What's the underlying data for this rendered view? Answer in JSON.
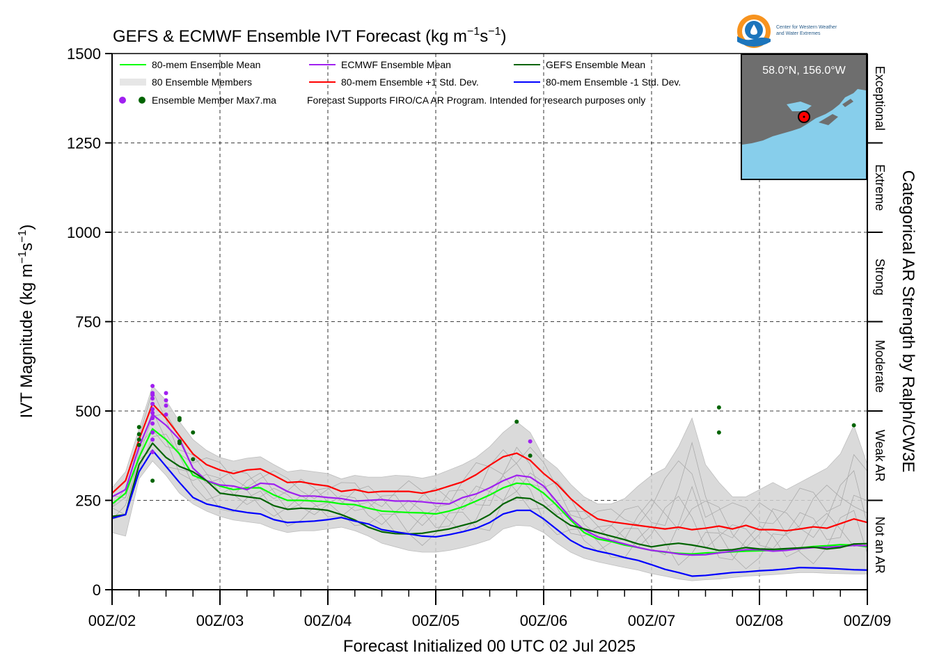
{
  "header": {
    "title_main": "GEFS & ECMWF Ensemble IVT Forecast (kg m",
    "title_sup1": "−1",
    "title_mid": "s",
    "title_sup2": "−1",
    "title_end": ")",
    "logo_line1": "Center for Western Weather",
    "logo_line2": "and Water Extremes"
  },
  "legend": {
    "items": [
      {
        "label": "80-mem Ensemble Mean",
        "color": "#00ff00"
      },
      {
        "label": "ECMWF Ensemble Mean",
        "color": "#a020f0"
      },
      {
        "label": "GEFS Ensemble Mean",
        "color": "#006400"
      },
      {
        "label": "80 Ensemble Members",
        "color": "#bebebe"
      },
      {
        "label": "80-mem Ensemble +1 Std. Dev.",
        "color": "#ff0000"
      },
      {
        "label": "80-mem Ensemble -1 Std. Dev.",
        "color": "#0000ff"
      }
    ],
    "max_label": "Ensemble Member Max7.ma",
    "disclaimer": "Forecast Supports FIRO/CA AR Program. Intended for research purposes only"
  },
  "inset": {
    "location": "58.0°N, 156.0°W",
    "land_color": "#6e6e6e",
    "water_color": "#87ceeb"
  },
  "categories": {
    "title": "Categorical AR Strength by Ralph/CW3E",
    "bands": [
      {
        "label": "Not an AR",
        "from": 0,
        "to": 250
      },
      {
        "label": "Weak AR",
        "from": 250,
        "to": 500
      },
      {
        "label": "Moderate",
        "from": 500,
        "to": 750
      },
      {
        "label": "Strong",
        "from": 750,
        "to": 1000
      },
      {
        "label": "Extreme",
        "from": 1000,
        "to": 1250
      },
      {
        "label": "Exceptional",
        "from": 1250,
        "to": 1500
      }
    ]
  },
  "chart_data": {
    "type": "line",
    "title": "GEFS & ECMWF Ensemble IVT Forecast (kg m−1s−1)",
    "xlabel": "Forecast Initialized 00 UTC 02 Jul 2025",
    "ylabel": "IVT Magnitude (kg m−1s−1)",
    "ylim": [
      0,
      1500
    ],
    "xlim": [
      0,
      168
    ],
    "x_units": "forecast hours",
    "yticks": [
      0,
      250,
      500,
      750,
      1000,
      1250,
      1500
    ],
    "xticks": [
      {
        "x": 0,
        "label": "00Z/02"
      },
      {
        "x": 24,
        "label": "00Z/03"
      },
      {
        "x": 48,
        "label": "00Z/04"
      },
      {
        "x": 72,
        "label": "00Z/05"
      },
      {
        "x": 96,
        "label": "00Z/06"
      },
      {
        "x": 120,
        "label": "00Z/07"
      },
      {
        "x": 144,
        "label": "00Z/08"
      },
      {
        "x": 168,
        "label": "00Z/09"
      }
    ],
    "grid": true,
    "x": [
      0,
      3,
      6,
      9,
      12,
      15,
      18,
      21,
      24,
      27,
      30,
      33,
      36,
      39,
      42,
      45,
      48,
      51,
      54,
      57,
      60,
      63,
      66,
      69,
      72,
      75,
      78,
      81,
      84,
      87,
      90,
      93,
      96,
      99,
      102,
      105,
      108,
      111,
      114,
      117,
      120,
      123,
      126,
      129,
      132,
      135,
      138,
      141,
      144,
      147,
      150,
      153,
      156,
      159,
      162,
      165,
      168
    ],
    "series": [
      {
        "name": "80-mem Ensemble Mean",
        "color": "#00ff00",
        "values": [
          240,
          270,
          370,
          450,
          420,
          380,
          320,
          305,
          290,
          280,
          285,
          285,
          265,
          250,
          250,
          248,
          246,
          240,
          238,
          228,
          220,
          218,
          216,
          215,
          212,
          220,
          232,
          248,
          265,
          285,
          298,
          295,
          270,
          235,
          195,
          160,
          142,
          135,
          125,
          118,
          110,
          105,
          102,
          100,
          103,
          104,
          106,
          108,
          109,
          110,
          114,
          117,
          121,
          123,
          126,
          125,
          120
        ]
      },
      {
        "name": "ECMWF Ensemble Mean",
        "color": "#a020f0",
        "values": [
          260,
          280,
          400,
          490,
          460,
          420,
          340,
          305,
          293,
          290,
          280,
          298,
          295,
          275,
          262,
          262,
          258,
          255,
          248,
          250,
          252,
          248,
          248,
          246,
          242,
          240,
          258,
          268,
          285,
          305,
          320,
          315,
          290,
          245,
          200,
          168,
          148,
          138,
          128,
          118,
          110,
          106,
          100,
          97,
          98,
          103,
          108,
          112,
          112,
          108,
          110,
          115,
          118,
          119,
          121,
          124,
          123
        ]
      },
      {
        "name": "GEFS Ensemble Mean",
        "color": "#006400",
        "values": [
          205,
          210,
          350,
          410,
          370,
          345,
          330,
          305,
          270,
          265,
          260,
          255,
          235,
          225,
          228,
          226,
          222,
          210,
          195,
          175,
          162,
          157,
          156,
          158,
          164,
          170,
          180,
          190,
          210,
          240,
          258,
          255,
          235,
          205,
          180,
          170,
          160,
          150,
          140,
          128,
          120,
          126,
          130,
          125,
          118,
          110,
          112,
          118,
          114,
          113,
          115,
          117,
          119,
          114,
          118,
          128,
          129
        ]
      },
      {
        "name": "80-mem Ensemble +1 Std. Dev.",
        "color": "#ff0000",
        "values": [
          270,
          305,
          420,
          520,
          480,
          430,
          380,
          350,
          335,
          325,
          335,
          338,
          320,
          300,
          302,
          295,
          290,
          275,
          280,
          272,
          275,
          275,
          275,
          270,
          278,
          290,
          302,
          322,
          348,
          372,
          382,
          362,
          325,
          295,
          255,
          223,
          198,
          190,
          185,
          180,
          175,
          170,
          175,
          168,
          172,
          178,
          170,
          180,
          168,
          168,
          165,
          170,
          176,
          172,
          185,
          198,
          188
        ]
      },
      {
        "name": "80-mem Ensemble -1 Std. Dev.",
        "color": "#0000ff",
        "values": [
          200,
          210,
          330,
          390,
          345,
          300,
          258,
          240,
          232,
          222,
          216,
          212,
          196,
          188,
          190,
          192,
          196,
          202,
          192,
          184,
          168,
          162,
          156,
          150,
          148,
          154,
          162,
          172,
          188,
          212,
          222,
          222,
          198,
          168,
          138,
          118,
          108,
          100,
          90,
          82,
          70,
          57,
          48,
          38,
          40,
          44,
          48,
          50,
          53,
          55,
          58,
          62,
          61,
          60,
          58,
          56,
          55
        ]
      }
    ],
    "members_band": {
      "name": "80 Ensemble Members",
      "color": "#bebebe",
      "low": [
        160,
        150,
        310,
        360,
        320,
        270,
        240,
        220,
        205,
        195,
        190,
        185,
        170,
        160,
        165,
        165,
        170,
        175,
        165,
        150,
        130,
        120,
        110,
        105,
        105,
        110,
        118,
        128,
        140,
        170,
        180,
        178,
        160,
        130,
        105,
        88,
        78,
        70,
        62,
        55,
        45,
        38,
        30,
        25,
        28,
        30,
        34,
        38,
        40,
        42,
        45,
        48,
        48,
        46,
        45,
        44,
        44
      ],
      "high": [
        285,
        330,
        450,
        570,
        530,
        470,
        420,
        390,
        370,
        360,
        368,
        372,
        350,
        330,
        335,
        330,
        325,
        310,
        320,
        315,
        315,
        320,
        318,
        312,
        320,
        335,
        350,
        370,
        400,
        440,
        470,
        440,
        370,
        340,
        295,
        260,
        240,
        240,
        255,
        290,
        320,
        340,
        400,
        480,
        350,
        300,
        260,
        260,
        280,
        300,
        280,
        300,
        320,
        340,
        380,
        460,
        350
      ]
    },
    "member_maxima": {
      "ecmwf_color": "#a020f0",
      "gefs_color": "#006400",
      "ecmwf": [
        [
          9,
          570
        ],
        [
          9,
          550
        ],
        [
          9,
          545
        ],
        [
          9,
          535
        ],
        [
          9,
          520
        ],
        [
          9,
          505
        ],
        [
          9,
          495
        ],
        [
          9,
          480
        ],
        [
          9,
          465
        ],
        [
          9,
          440
        ],
        [
          9,
          420
        ],
        [
          9,
          385
        ],
        [
          12,
          550
        ],
        [
          12,
          530
        ],
        [
          12,
          515
        ],
        [
          12,
          490
        ],
        [
          93,
          415
        ]
      ],
      "gefs": [
        [
          6,
          455
        ],
        [
          6,
          435
        ],
        [
          6,
          420
        ],
        [
          6,
          405
        ],
        [
          9,
          305
        ],
        [
          15,
          480
        ],
        [
          15,
          475
        ],
        [
          15,
          415
        ],
        [
          15,
          410
        ],
        [
          18,
          440
        ],
        [
          18,
          365
        ],
        [
          90,
          470
        ],
        [
          93,
          375
        ],
        [
          135,
          510
        ],
        [
          135,
          440
        ],
        [
          165,
          460
        ]
      ]
    }
  }
}
